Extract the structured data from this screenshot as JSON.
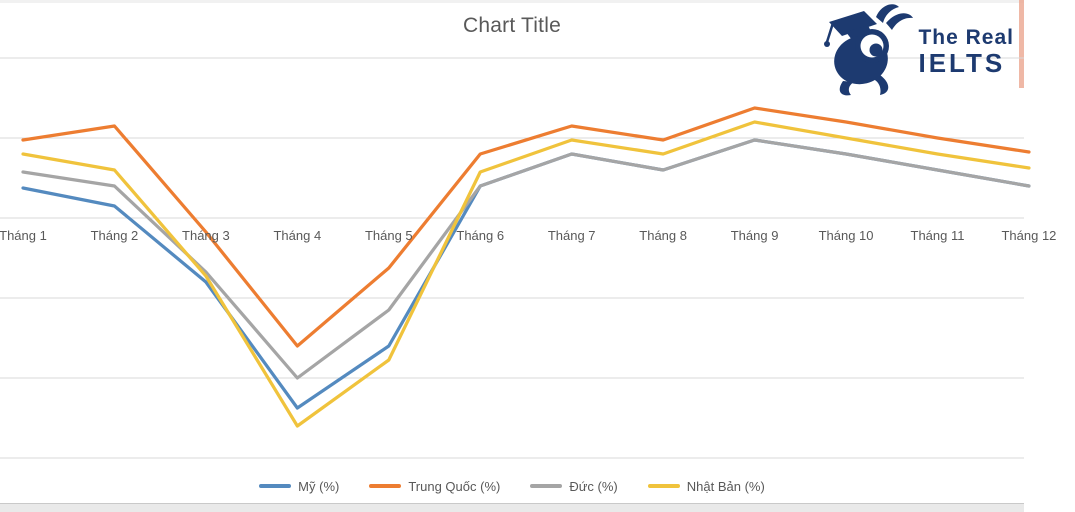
{
  "page": {
    "title": "Chart Title"
  },
  "logo": {
    "line1": "The Real",
    "line2": "IELTS",
    "color": "#1d3a70",
    "icon": "graduate-snail-mascot"
  },
  "chart_data": {
    "type": "line",
    "title": "Chart Title",
    "categories": [
      "Tháng 1",
      "Tháng 2",
      "Tháng 3",
      "Tháng 4",
      "Tháng 5",
      "Tháng 6",
      "Tháng 7",
      "Tháng 8",
      "Tháng 9",
      "Tháng 10",
      "Tháng 11",
      "Tháng 12"
    ],
    "series": [
      {
        "name": "Mỹ (%)",
        "color": "#548ABF",
        "values": [
          7.5,
          3,
          -16,
          -47.5,
          -32,
          8,
          16,
          12,
          19.5,
          16,
          12,
          8
        ]
      },
      {
        "name": "Trung Quốc (%)",
        "color": "#ED7D31",
        "values": [
          19.5,
          23,
          -3.5,
          -32,
          -12.5,
          16,
          23,
          19.5,
          27.5,
          24,
          20,
          16.5
        ]
      },
      {
        "name": "Đức (%)",
        "color": "#A5A5A5",
        "values": [
          11.5,
          8,
          -13.5,
          -40,
          -23,
          8,
          16,
          12,
          19.5,
          16,
          12,
          8
        ]
      },
      {
        "name": "Nhật Bản (%)",
        "color": "#F0C33C",
        "values": [
          16,
          12,
          -14.5,
          -52,
          -35.5,
          11.5,
          19.5,
          16,
          24,
          20,
          16,
          12.5
        ]
      }
    ],
    "ylim": [
      -60,
      40
    ],
    "gridline_step": 20,
    "grid": true,
    "gridline_color": "#d9d9d9",
    "text_color": "#595959",
    "legend_position": "bottom",
    "y_axis_labels_visible": false,
    "last_category_clipped": true
  }
}
